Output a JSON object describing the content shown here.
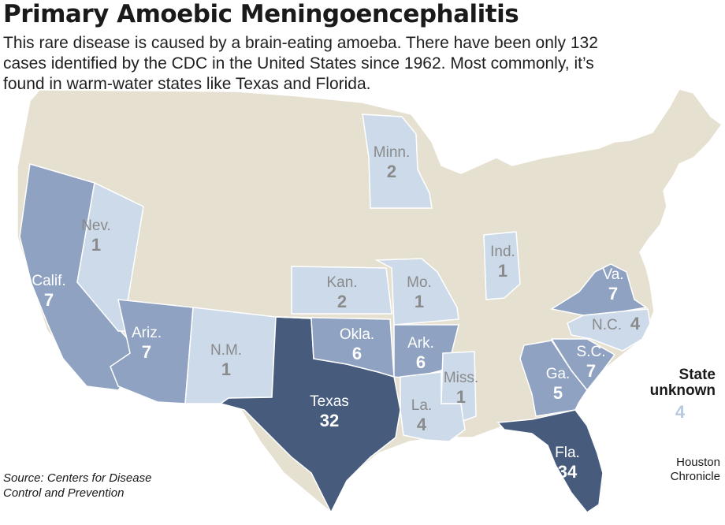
{
  "title": "Primary Amoebic Meningoencephalitis",
  "subtitle": "This rare disease is caused by a brain-eating amoeba. There have been only 132 cases identified by the CDC in the United States since 1962. Most commonly, it’s found in warm-water states like Texas and Florida.",
  "colors": {
    "base": "#e6e0d1",
    "light": "#ccdaea",
    "medium": "#8fa2c1",
    "dark": "#475c7d",
    "border": "#ffffff"
  },
  "states": [
    {
      "id": "ca",
      "label": "Calif.",
      "cases": 7,
      "tier": "medium"
    },
    {
      "id": "nv",
      "label": "Nev.",
      "cases": 1,
      "tier": "light"
    },
    {
      "id": "az",
      "label": "Ariz.",
      "cases": 7,
      "tier": "medium"
    },
    {
      "id": "nm",
      "label": "N.M.",
      "cases": 1,
      "tier": "light"
    },
    {
      "id": "tx",
      "label": "Texas",
      "cases": 32,
      "tier": "dark"
    },
    {
      "id": "ok",
      "label": "Okla.",
      "cases": 6,
      "tier": "medium"
    },
    {
      "id": "ks",
      "label": "Kan.",
      "cases": 2,
      "tier": "light"
    },
    {
      "id": "mn",
      "label": "Minn.",
      "cases": 2,
      "tier": "light"
    },
    {
      "id": "mo",
      "label": "Mo.",
      "cases": 1,
      "tier": "light"
    },
    {
      "id": "ar",
      "label": "Ark.",
      "cases": 6,
      "tier": "medium"
    },
    {
      "id": "la",
      "label": "La.",
      "cases": 4,
      "tier": "light"
    },
    {
      "id": "ms",
      "label": "Miss.",
      "cases": 1,
      "tier": "light"
    },
    {
      "id": "in",
      "label": "Ind.",
      "cases": 1,
      "tier": "light"
    },
    {
      "id": "va",
      "label": "Va.",
      "cases": 7,
      "tier": "medium"
    },
    {
      "id": "nc",
      "label": "N.C.",
      "cases": 4,
      "tier": "light"
    },
    {
      "id": "sc",
      "label": "S.C.",
      "cases": 7,
      "tier": "medium"
    },
    {
      "id": "ga",
      "label": "Ga.",
      "cases": 5,
      "tier": "medium"
    },
    {
      "id": "fl",
      "label": "Fla.",
      "cases": 34,
      "tier": "dark"
    }
  ],
  "unknown": {
    "label": "State\nunknown",
    "cases": "4"
  },
  "source": "Source: Centers for Disease\nControl and Prevention",
  "credit": "Houston\nChronicle"
}
